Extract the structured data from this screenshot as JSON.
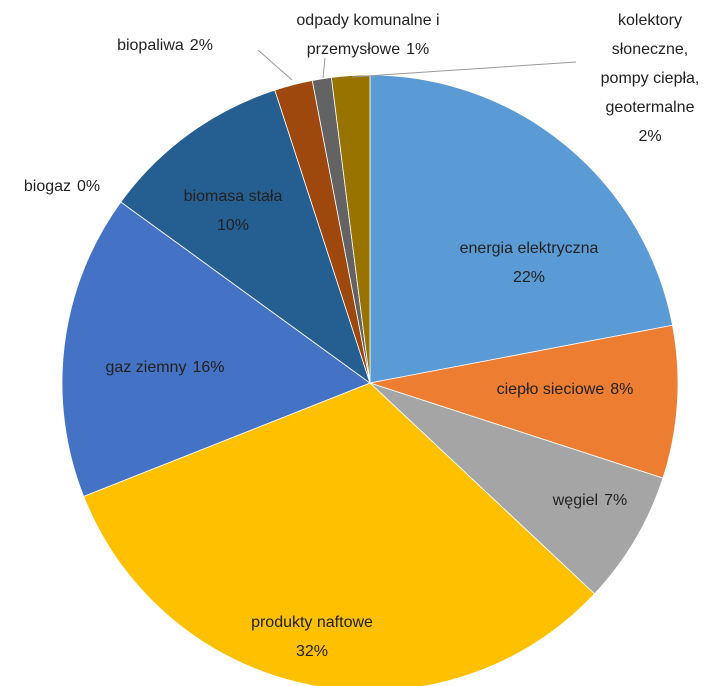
{
  "chart_data": {
    "type": "pie",
    "categories": [
      "energia elektryczna",
      "ciepło sieciowe",
      "węgiel",
      "produkty naftowe",
      "gaz ziemny",
      "biogaz",
      "biomasa stała",
      "biopaliwa",
      "odpady komunalne i przemysłowe",
      "kolektory słoneczne, pompy ciepła, geotermalne"
    ],
    "values": [
      22,
      8,
      7,
      32,
      16,
      0,
      10,
      2,
      1,
      2
    ],
    "value_labels": [
      "22%",
      "8%",
      "7%",
      "32%",
      "16%",
      "0%",
      "10%",
      "2%",
      "1%",
      "2%"
    ],
    "colors": [
      "#5b9bd5",
      "#ed7d31",
      "#a5a5a5",
      "#ffc000",
      "#4472c4",
      "#70ad47",
      "#255e91",
      "#9e480e",
      "#636363",
      "#997300"
    ]
  }
}
